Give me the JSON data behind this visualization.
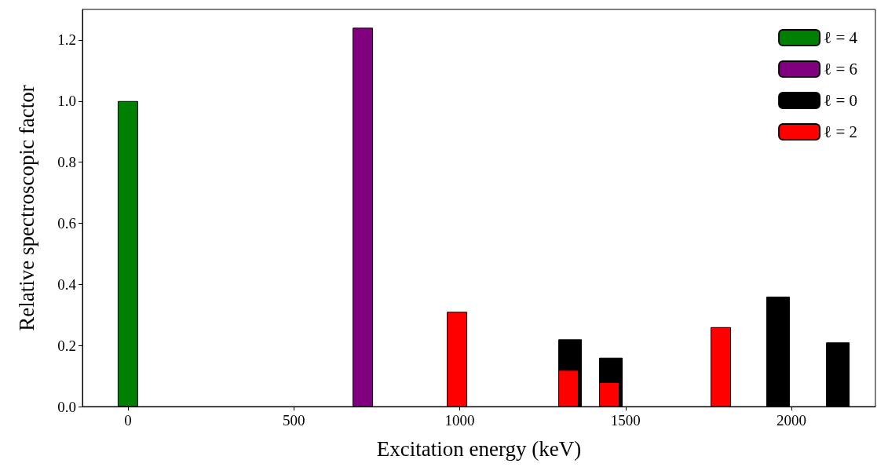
{
  "chart_data": {
    "type": "bar",
    "xlabel": "Excitation energy (keV)",
    "ylabel": "Relative spectroscopic factor",
    "series": [
      {
        "name": "ℓ = 4",
        "color": "#008000",
        "x": [
          0
        ],
        "values": [
          1.0
        ]
      },
      {
        "name": "ℓ = 6",
        "color": "#800080",
        "x": [
          708
        ],
        "values": [
          1.24
        ]
      },
      {
        "name": "ℓ = 0",
        "color": "#000000",
        "x": [
          1328,
          1451,
          1955,
          2135
        ],
        "values": [
          0.22,
          0.16,
          0.36,
          0.21
        ]
      },
      {
        "name": "ℓ = 2",
        "color": "#ff0000",
        "x": [
          992,
          1328,
          1451,
          1787
        ],
        "values": [
          0.31,
          0.12,
          0.08,
          0.26
        ]
      }
    ],
    "xlim": [
      -137,
      2253
    ],
    "xticks": [
      0,
      500,
      1000,
      1500,
      2000
    ],
    "ylim": [
      0,
      1.3
    ],
    "yticks": [
      {
        "value": 0,
        "label": "0.0"
      },
      0.2,
      0.4,
      0.6,
      0.8,
      {
        "value": 1,
        "label": "1.0"
      },
      1.2
    ],
    "grid": false,
    "legend": "top right"
  }
}
